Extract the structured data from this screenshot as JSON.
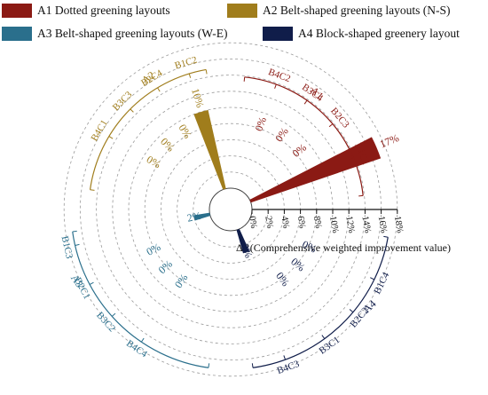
{
  "legend": [
    {
      "key": "A1",
      "label": "Dotted greening layouts",
      "color": "#8b1a14"
    },
    {
      "key": "A2",
      "label": "Belt-shaped greening layouts (N-S)",
      "color": "#a07d1c"
    },
    {
      "key": "A3",
      "label": "Belt-shaped greening layouts (W-E)",
      "color": "#2a6f8c"
    },
    {
      "key": "A4",
      "label": "Block-shaped greenery layout",
      "color": "#101d4a"
    }
  ],
  "chart_data": {
    "type": "radial-bar",
    "radial_axis": {
      "label": "ΔR(Comprehensive weighted improvement value)",
      "ticks": [
        "0%",
        "2%",
        "4%",
        "6%",
        "8%",
        "10%",
        "12%",
        "14%",
        "16%",
        "18%"
      ],
      "range": [
        0,
        18
      ]
    },
    "groups": [
      {
        "name": "A1",
        "color": "#8b1a14",
        "cases": [
          "B1C1",
          "B2C3",
          "B3C4",
          "B4C2"
        ],
        "values": [
          17,
          0,
          0,
          0
        ],
        "labels": [
          "17%",
          "0%",
          "0%",
          "0%"
        ]
      },
      {
        "name": "A2",
        "color": "#a07d1c",
        "cases": [
          "B1C2",
          "B2C4",
          "B3C3",
          "B4C1"
        ],
        "values": [
          10,
          0,
          0,
          0
        ],
        "labels": [
          "10%",
          "0%",
          "0%",
          "0%"
        ]
      },
      {
        "name": "A3",
        "color": "#2a6f8c",
        "cases": [
          "B1C3",
          "B2C1",
          "B3C2",
          "B4C4"
        ],
        "values": [
          2,
          0,
          0,
          0
        ],
        "labels": [
          "2%",
          "0%",
          "0%",
          "0%"
        ]
      },
      {
        "name": "A4",
        "color": "#101d4a",
        "cases": [
          "B4C3",
          "B3C1",
          "B2C2",
          "B1C4"
        ],
        "values": [
          3,
          0,
          0,
          0
        ],
        "labels": [
          "3%",
          "0%",
          "0%",
          "0%"
        ]
      }
    ]
  }
}
